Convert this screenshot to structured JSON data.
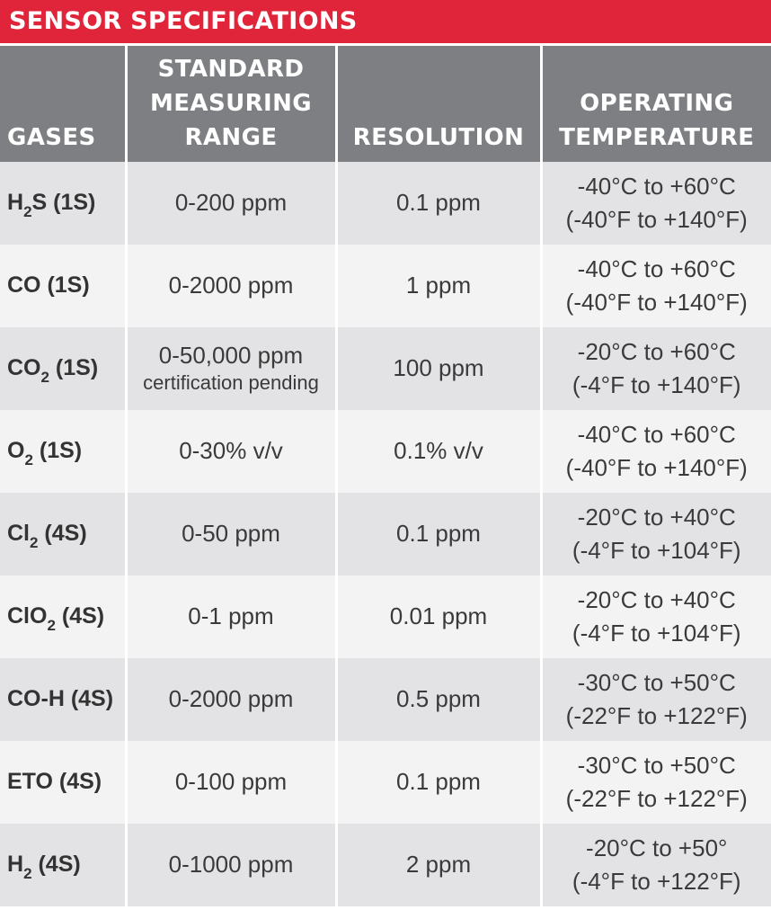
{
  "title": "SENSOR SPECIFICATIONS",
  "headers": {
    "gases": "GASES",
    "range": [
      "STANDARD",
      "MEASURING",
      "RANGE"
    ],
    "resolution": "RESOLUTION",
    "temperature": [
      "OPERATING",
      "TEMPERATURE"
    ]
  },
  "rows": [
    {
      "gas_main": "H",
      "gas_sub": "2",
      "gas_rest": "S (1S)",
      "range": "0-200 ppm",
      "range_note": "",
      "resolution": "0.1 ppm",
      "temp_c": "-40°C to +60°C",
      "temp_f": "(-40°F to +140°F)"
    },
    {
      "gas_main": "CO (1S)",
      "gas_sub": "",
      "gas_rest": "",
      "range": "0-2000 ppm",
      "range_note": "",
      "resolution": "1 ppm",
      "temp_c": "-40°C to +60°C",
      "temp_f": "(-40°F to +140°F)"
    },
    {
      "gas_main": "CO",
      "gas_sub": "2",
      "gas_rest": " (1S)",
      "range": "0-50,000 ppm",
      "range_note": "certification pending",
      "resolution": "100 ppm",
      "temp_c": "-20°C to +60°C",
      "temp_f": "(-4°F to +140°F)"
    },
    {
      "gas_main": "O",
      "gas_sub": "2",
      "gas_rest": " (1S)",
      "range": "0-30% v/v",
      "range_note": "",
      "resolution": "0.1% v/v",
      "temp_c": "-40°C to +60°C",
      "temp_f": "(-40°F to +140°F)"
    },
    {
      "gas_main": "Cl",
      "gas_sub": "2",
      "gas_rest": " (4S)",
      "range": "0-50 ppm",
      "range_note": "",
      "resolution": "0.1 ppm",
      "temp_c": "-20°C to +40°C",
      "temp_f": "(-4°F to +104°F)"
    },
    {
      "gas_main": "ClO",
      "gas_sub": "2",
      "gas_rest": " (4S)",
      "range": "0-1 ppm",
      "range_note": "",
      "resolution": "0.01 ppm",
      "temp_c": "-20°C to +40°C",
      "temp_f": "(-4°F to +104°F)"
    },
    {
      "gas_main": "CO-H (4S)",
      "gas_sub": "",
      "gas_rest": "",
      "range": "0-2000 ppm",
      "range_note": "",
      "resolution": "0.5 ppm",
      "temp_c": "-30°C to +50°C",
      "temp_f": "(-22°F to +122°F)"
    },
    {
      "gas_main": "ETO (4S)",
      "gas_sub": "",
      "gas_rest": "",
      "range": "0-100 ppm",
      "range_note": "",
      "resolution": "0.1 ppm",
      "temp_c": "-30°C to +50°C",
      "temp_f": "(-22°F to +122°F)"
    },
    {
      "gas_main": "H",
      "gas_sub": "2",
      "gas_rest": " (4S)",
      "range": "0-1000 ppm",
      "range_note": "",
      "resolution": "2 ppm",
      "temp_c": "-20°C to +50°",
      "temp_f": "(-4°F to +122°F)"
    }
  ],
  "colors": {
    "title_bar": "#e0243a",
    "header_bg": "#7d7f82",
    "row_odd": "#e3e3e5",
    "row_even": "#f3f3f4"
  }
}
